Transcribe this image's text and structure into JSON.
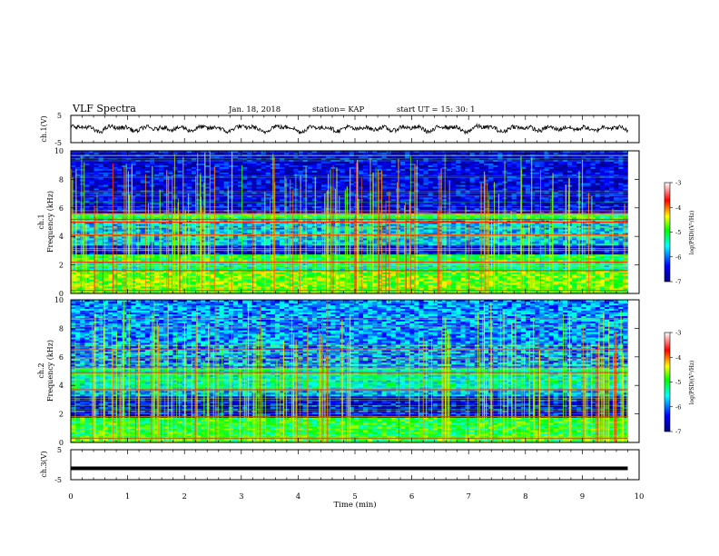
{
  "header": {
    "title": "VLF Spectra",
    "date": "Jan. 18, 2018",
    "station": "station= KAP",
    "start": "start  UT =   15: 30: 1"
  },
  "chart_data": [
    {
      "id": "ch1-waveform",
      "type": "line",
      "ylabel": "ch.1(V)",
      "ylim": [
        -5,
        5
      ],
      "y_ticklabels": [
        "5",
        "-5"
      ],
      "xlim": [
        0,
        10
      ],
      "color": "#000000",
      "x_end": 9.8,
      "series_note": "",
      "mean": 0.2,
      "approx_amplitude": 1.6
    },
    {
      "id": "ch1-spectrogram",
      "type": "heatmap",
      "ylabel": "Frequency (kHz)",
      "panel_label": "ch.1",
      "ylim": [
        0,
        10
      ],
      "y_ticks": [
        0,
        2,
        4,
        6,
        8,
        10
      ],
      "xlim": [
        0,
        10
      ],
      "x_end": 9.8,
      "colorbar": {
        "label": "log(PSD)(V²/Hz)",
        "range": [
          -7,
          -3
        ],
        "ticks": [
          "-3",
          "-4",
          "-5",
          "-6",
          "-7"
        ],
        "colors": [
          "#000080",
          "#0000ff",
          "#00ffff",
          "#00ff00",
          "#ffff00",
          "#ff0000",
          "#ffffff"
        ]
      },
      "bands_log_psd": [
        {
          "f": [
            0.0,
            0.3
          ],
          "level": -4.8
        },
        {
          "f": [
            0.3,
            1.6
          ],
          "level": -4.7
        },
        {
          "f": [
            1.6,
            2.2
          ],
          "level": -5.4
        },
        {
          "f": [
            2.2,
            2.7
          ],
          "level": -5.0
        },
        {
          "f": [
            2.7,
            3.4
          ],
          "level": -6.5
        },
        {
          "f": [
            3.4,
            5.2
          ],
          "level": -5.7
        },
        {
          "f": [
            5.2,
            5.6
          ],
          "level": -5.0
        },
        {
          "f": [
            5.6,
            10.0
          ],
          "level": -6.5
        }
      ],
      "lines_kHz": [
        0.2,
        1.6,
        2.2,
        4.1,
        5.0,
        5.2,
        5.6
      ]
    },
    {
      "id": "ch2-spectrogram",
      "type": "heatmap",
      "ylabel": "Frequency (kHz)",
      "panel_label": "ch.2",
      "ylim": [
        0,
        10
      ],
      "y_ticks": [
        0,
        2,
        4,
        6,
        8,
        10
      ],
      "xlim": [
        0,
        10
      ],
      "x_end": 9.8,
      "colorbar": {
        "label": "log(PSD)(V²/Hz)",
        "range": [
          -7,
          -3
        ],
        "ticks": [
          "-3",
          "-4",
          "-5",
          "-6",
          "-7"
        ],
        "colors": [
          "#000080",
          "#0000ff",
          "#00ffff",
          "#00ff00",
          "#ffff00",
          "#ff0000",
          "#ffffff"
        ]
      },
      "bands_log_psd": [
        {
          "f": [
            0.0,
            0.5
          ],
          "level": -4.9
        },
        {
          "f": [
            0.5,
            1.8
          ],
          "level": -5.0
        },
        {
          "f": [
            1.8,
            3.2
          ],
          "level": -6.4
        },
        {
          "f": [
            3.2,
            3.7
          ],
          "level": -5.8
        },
        {
          "f": [
            3.7,
            5.3
          ],
          "level": -5.4
        },
        {
          "f": [
            5.3,
            10.0
          ],
          "level": -5.9
        }
      ],
      "lines_kHz": [
        0.3,
        1.8,
        3.7,
        4.9,
        5.3,
        6.5
      ]
    },
    {
      "id": "ch3-waveform",
      "type": "line",
      "ylabel": "ch.3(V)",
      "ylim": [
        -5,
        5
      ],
      "y_ticklabels": [
        "5",
        "-5"
      ],
      "xlim": [
        0,
        10
      ],
      "x_end": 9.8,
      "color": "#000000",
      "constant_value": -1.2
    }
  ],
  "x_axis": {
    "label": "Time (min)",
    "ticks": [
      "0",
      "1",
      "2",
      "3",
      "4",
      "5",
      "6",
      "7",
      "8",
      "9",
      "10"
    ]
  }
}
